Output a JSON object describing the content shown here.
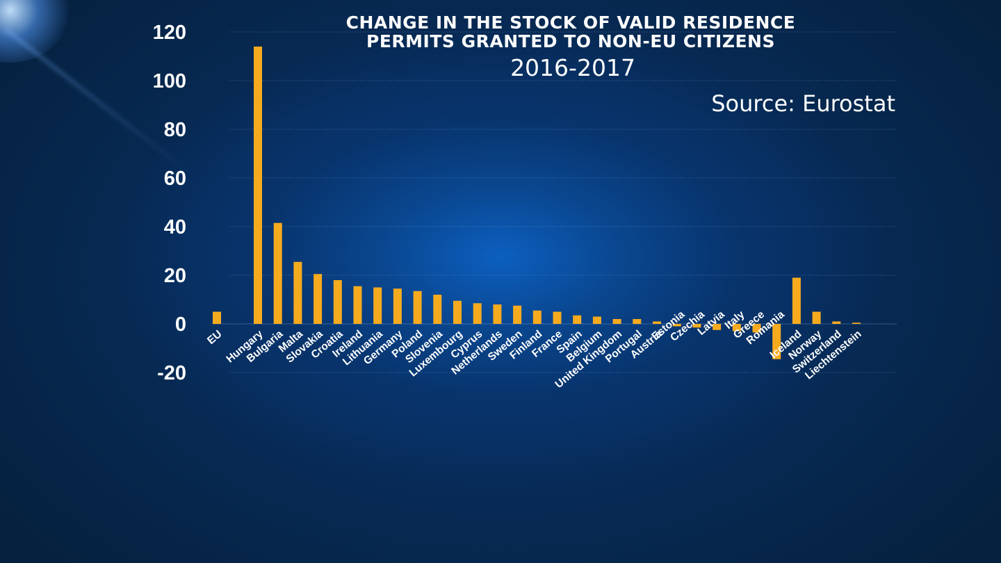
{
  "chart_data": {
    "type": "bar",
    "title": "CHANGE IN THE STOCK OF VALID RESIDENCE",
    "title_line2": "PERMITS GRANTED TO NON-EU CITIZENS",
    "subtitle": "2016-2017",
    "source": "Source: Eurostat",
    "ylim": [
      -20,
      120
    ],
    "yticks": [
      "120",
      "100",
      "80",
      "60",
      "40",
      "20",
      "0",
      "-20"
    ],
    "ytick_values": [
      120,
      100,
      80,
      60,
      40,
      20,
      0,
      -20
    ],
    "grid": true,
    "bar_color": "#f6ab1e",
    "categories": [
      "EU",
      "",
      "Hungary",
      "Bulgaria",
      "Malta",
      "Slovakia",
      "Croatia",
      "Ireland",
      "Lithuania",
      "Germany",
      "Poland",
      "Slovenia",
      "Luxembourg",
      "Cyprus",
      "Netherlands",
      "Sweden",
      "Finland",
      "France",
      "Spain",
      "Belgium",
      "United Kingdom",
      "Portugal",
      "Austria",
      "Estonia",
      "Czechia",
      "Latvia",
      "Italy",
      "Greece",
      "Romania",
      "Iceland",
      "Norway",
      "Switzerland",
      "Liechtenstein"
    ],
    "values": [
      5,
      null,
      114,
      41.5,
      25.5,
      20.5,
      18,
      15.5,
      15,
      14.5,
      13.5,
      12,
      9.5,
      8.5,
      8,
      7.5,
      5.5,
      5,
      3.5,
      3,
      2,
      2,
      1,
      -1,
      -1.5,
      -2.5,
      -3,
      -3.5,
      -14.5,
      19,
      5,
      1,
      0.5
    ]
  }
}
